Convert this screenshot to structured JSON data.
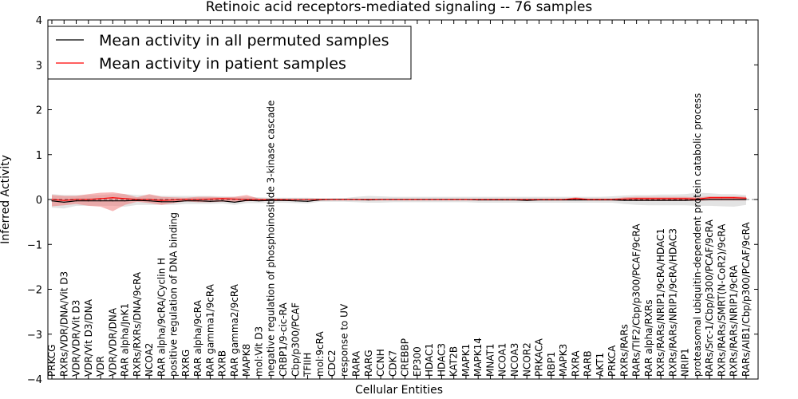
{
  "chart_data": {
    "type": "line",
    "title": "Retinoic acid receptors-mediated signaling -- 76 samples",
    "xlabel": "Cellular Entities",
    "ylabel": "Inferred Activity",
    "ylim": [
      -4,
      4
    ],
    "yticks": [
      -4,
      -3,
      -2,
      -1,
      0,
      1,
      2,
      3,
      4
    ],
    "ytick_labels": [
      "−4",
      "−3",
      "−2",
      "−1",
      "0",
      "1",
      "2",
      "3",
      "4"
    ],
    "legend": {
      "location": "upper-left",
      "entries": [
        {
          "label": "Mean activity in all permuted samples",
          "color": "#000000"
        },
        {
          "label": "Mean activity in patient samples",
          "color": "#ff0000"
        }
      ]
    },
    "categories": [
      "PRKCG",
      "RXRs/VDR/DNA/Vit D3",
      "VDR/VDR/Vit D3",
      "VDR/Vit D3/DNA",
      "VDR",
      "VDR/VDR/DNA",
      "RAR alpha/JnK1",
      "RXRs/RXRs/DNA/9cRA",
      "NCOA2",
      "RAR alpha/9cRA/Cyclin H",
      "positive regulation of DNA binding",
      "RXRG",
      "RAR alpha/9cRA",
      "RAR gamma1/9cRA",
      "RXRB",
      "RAR gamma2/9cRA",
      "MAPK8",
      "mol:Vit D3",
      "negative regulation of phosphoinositide 3-kinase cascade",
      "CRBP1/9-cic-RA",
      "Cbp/p300/PCAF",
      "TFIIH",
      "mol:9cRA",
      "CDC2",
      "response to UV",
      "RARA",
      "RARG",
      "CCNH",
      "CDK7",
      "CREBBP",
      "EP300",
      "HDAC1",
      "HDAC3",
      "KAT2B",
      "MAPK1",
      "MAPK14",
      "MNAT1",
      "NCOA1",
      "NCOA3",
      "NCOR2",
      "PRKACA",
      "RBP1",
      "MAPK3",
      "RXRA",
      "RARB",
      "AKT1",
      "PRKCA",
      "RXRs/RARs",
      "RARs/TIF2/Cbp/p300/PCAF/9cRA",
      "RAR alpha/RXRs",
      "RXRs/RARs/NRIP1/9cRA/HDAC1",
      "RXRs/RARs/NRIP1/9cRA/HDAC3",
      "NRIP1",
      "proteasomal ubiquitin-dependent protein catabolic process",
      "RARs/Src-1/Cbp/p300/PCAF/9cRA",
      "RXRs/RARs/SMRT(N-CoR2)/9cRA",
      "RXRs/RARs/NRIP1/9cRA",
      "RARs/AIB1/Cbp/p300/PCAF/9cRA"
    ],
    "series": [
      {
        "name": "Mean activity in all permuted samples",
        "color": "#000000",
        "values": [
          -0.03,
          -0.06,
          -0.03,
          -0.03,
          -0.03,
          -0.03,
          -0.03,
          -0.02,
          -0.03,
          -0.05,
          -0.05,
          -0.03,
          -0.03,
          -0.04,
          -0.03,
          -0.06,
          -0.02,
          -0.03,
          -0.02,
          -0.02,
          -0.03,
          -0.04,
          -0.01,
          0,
          0,
          0,
          -0.01,
          0,
          0,
          0,
          0,
          0,
          0,
          0,
          0,
          -0.01,
          -0.01,
          -0.01,
          -0.01,
          -0.02,
          -0.01,
          -0.01,
          -0.01,
          -0.01,
          -0.01,
          -0.01,
          -0.01,
          -0.02,
          -0.02,
          -0.02,
          -0.02,
          -0.02,
          -0.02,
          -0.01,
          0,
          0,
          0,
          0
        ],
        "band_lower": [
          -0.18,
          -0.2,
          -0.14,
          -0.14,
          -0.14,
          -0.14,
          -0.16,
          -0.12,
          -0.12,
          -0.12,
          -0.12,
          -0.1,
          -0.1,
          -0.1,
          -0.09,
          -0.12,
          -0.08,
          -0.08,
          -0.07,
          -0.07,
          -0.08,
          -0.09,
          -0.05,
          -0.05,
          -0.05,
          -0.06,
          -0.07,
          -0.07,
          -0.06,
          -0.06,
          -0.06,
          -0.06,
          -0.06,
          -0.06,
          -0.06,
          -0.07,
          -0.07,
          -0.07,
          -0.07,
          -0.07,
          -0.07,
          -0.07,
          -0.07,
          -0.07,
          -0.07,
          -0.07,
          -0.07,
          -0.1,
          -0.12,
          -0.13,
          -0.13,
          -0.13,
          -0.13,
          -0.14,
          -0.14,
          -0.15,
          -0.16,
          -0.12
        ],
        "band_upper": [
          0.12,
          0.1,
          0.1,
          0.1,
          0.1,
          0.12,
          0.12,
          0.1,
          0.1,
          0.08,
          0.08,
          0.08,
          0.08,
          0.08,
          0.07,
          0.06,
          0.06,
          0.05,
          0.04,
          0.04,
          0.04,
          0.04,
          0.03,
          0.03,
          0.03,
          0.06,
          0.08,
          0.07,
          0.06,
          0.06,
          0.06,
          0.06,
          0.06,
          0.06,
          0.06,
          0.06,
          0.06,
          0.06,
          0.06,
          0.06,
          0.06,
          0.06,
          0.06,
          0.06,
          0.06,
          0.06,
          0.07,
          0.09,
          0.1,
          0.1,
          0.11,
          0.11,
          0.12,
          0.15,
          0.14,
          0.12,
          0.12,
          0.1
        ]
      },
      {
        "name": "Mean activity in patient samples",
        "color": "#ff0000",
        "values": [
          0,
          -0.02,
          0,
          0,
          0.02,
          0.04,
          0.02,
          0,
          0,
          -0.02,
          -0.01,
          0,
          0,
          0.01,
          0.02,
          0.01,
          0,
          0,
          0,
          0,
          0,
          0,
          0,
          0,
          0,
          0,
          0,
          0,
          0,
          0,
          0,
          0,
          0,
          0,
          0,
          0,
          0,
          0,
          0,
          0,
          0,
          0,
          0,
          0.02,
          0,
          0,
          0,
          0.01,
          0.02,
          0.02,
          0.02,
          0.02,
          0.02,
          0.01,
          0.04,
          0.04,
          0.04,
          0.03
        ],
        "band_lower": [
          -0.15,
          -0.13,
          -0.1,
          -0.14,
          -0.16,
          -0.26,
          -0.12,
          -0.05,
          -0.08,
          -0.12,
          -0.08,
          -0.04,
          -0.06,
          -0.06,
          -0.05,
          -0.06,
          -0.04,
          -0.02,
          -0.01,
          -0.01,
          -0.01,
          -0.01,
          -0.01,
          -0.01,
          -0.01,
          -0.01,
          -0.01,
          -0.01,
          -0.01,
          -0.01,
          -0.01,
          -0.01,
          -0.01,
          -0.01,
          -0.01,
          -0.01,
          -0.01,
          -0.01,
          -0.01,
          -0.01,
          -0.01,
          -0.01,
          -0.01,
          -0.01,
          -0.01,
          -0.01,
          -0.01,
          -0.02,
          -0.03,
          -0.03,
          -0.03,
          -0.03,
          -0.03,
          -0.03,
          -0.02,
          -0.02,
          -0.02,
          -0.02
        ],
        "band_upper": [
          0.1,
          0.08,
          0.08,
          0.12,
          0.15,
          0.16,
          0.12,
          0.05,
          0.12,
          0.06,
          0.05,
          0.04,
          0.06,
          0.06,
          0.05,
          0.06,
          0.1,
          0.02,
          0.01,
          0.01,
          0.01,
          0.01,
          0.01,
          0.01,
          0.01,
          0.01,
          0.01,
          0.01,
          0.01,
          0.01,
          0.01,
          0.01,
          0.01,
          0.01,
          0.01,
          0.01,
          0.01,
          0.01,
          0.01,
          0.01,
          0.01,
          0.01,
          0.01,
          0.05,
          0.02,
          0.02,
          0.02,
          0.05,
          0.06,
          0.06,
          0.06,
          0.06,
          0.06,
          0.05,
          0.07,
          0.07,
          0.07,
          0.06
        ]
      }
    ]
  }
}
